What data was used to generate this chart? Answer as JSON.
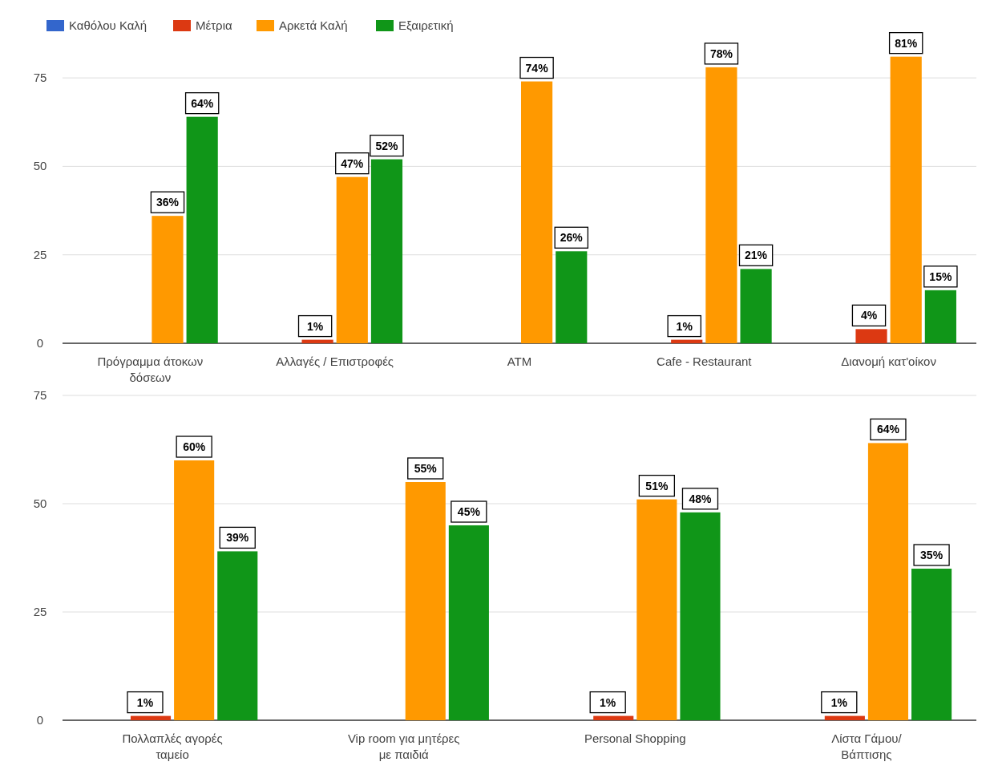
{
  "chart_data": [
    {
      "type": "bar",
      "categories": [
        "Πρόγραμμα άτοκων δόσεων",
        "Αλλαγές / Επιστροφές",
        "ATM",
        "Cafe - Restaurant",
        "Διανομή κατ'οίκον"
      ],
      "series": [
        {
          "name": "Καθόλου Καλή",
          "color": "#3366cc",
          "values": [
            0,
            0,
            0,
            0,
            0
          ]
        },
        {
          "name": "Μέτρια",
          "color": "#dc3912",
          "values": [
            0,
            1,
            0,
            1,
            4
          ],
          "value_labels": [
            null,
            "1%",
            null,
            "1%",
            "4%"
          ]
        },
        {
          "name": "Αρκετά Καλή",
          "color": "#ff9900",
          "values": [
            36,
            47,
            74,
            78,
            81
          ],
          "value_labels": [
            "36%",
            "47%",
            "74%",
            "78%",
            "81%"
          ]
        },
        {
          "name": "Εξαιρετική",
          "color": "#109618",
          "values": [
            64,
            52,
            26,
            21,
            15
          ],
          "value_labels": [
            "64%",
            "52%",
            "26%",
            "21%",
            "15%"
          ]
        }
      ],
      "ylim": [
        0,
        85
      ],
      "yticks": [
        0,
        25,
        50,
        75
      ],
      "grid": "y",
      "legend": "top left"
    },
    {
      "type": "bar",
      "categories": [
        "Πολλαπλές αγορές ταμείο",
        "Vip room για μητέρες με παιδιά",
        "Personal Shopping",
        "Λίστα Γάμου/ Βάπτισης"
      ],
      "series": [
        {
          "color": "#3366cc",
          "values": [
            0,
            0,
            0,
            0
          ]
        },
        {
          "color": "#dc3912",
          "values": [
            1,
            0,
            1,
            1
          ],
          "value_labels": [
            "1%",
            null,
            "1%",
            "1%"
          ]
        },
        {
          "color": "#ff9900",
          "values": [
            60,
            55,
            51,
            64
          ],
          "value_labels": [
            "60%",
            "55%",
            "51%",
            "64%"
          ]
        },
        {
          "color": "#109618",
          "values": [
            39,
            45,
            48,
            35
          ],
          "value_labels": [
            "39%",
            "45%",
            "48%",
            "35%"
          ]
        }
      ],
      "ylim": [
        0,
        75
      ],
      "yticks": [
        0,
        25,
        50,
        75
      ],
      "grid": "y"
    }
  ]
}
